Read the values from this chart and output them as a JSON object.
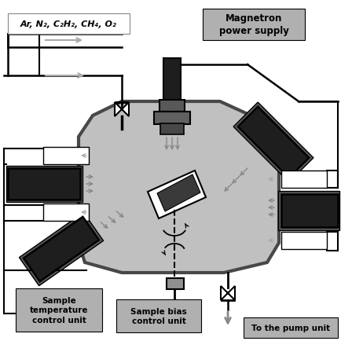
{
  "bg": "#ffffff",
  "chamber_fill": "#c0c0c0",
  "chamber_edge": "#484848",
  "chamber_lw": 3.0,
  "dark": "#1e1e1e",
  "dgray": "#585858",
  "mgray": "#909090",
  "lgray": "#d0d0d0",
  "lbox": "#b0b0b0",
  "white": "#ffffff",
  "gas_label": "Ar, N₂, C₂H₂, CH₄, O₂",
  "mag_supply": "Magnetron\npower supply",
  "s_temp": "Sample\ntemperature\ncontrol unit",
  "s_bias": "Sample bias\ncontrol unit",
  "pump": "To the pump unit",
  "figsize": [
    4.35,
    4.35
  ],
  "dpi": 100
}
